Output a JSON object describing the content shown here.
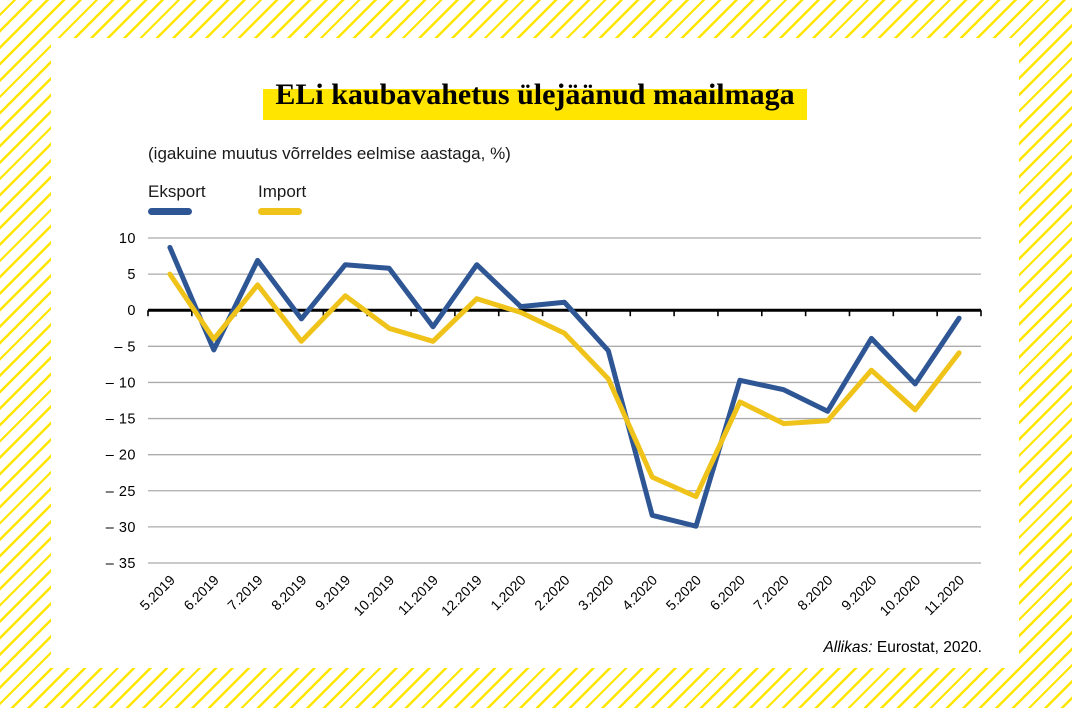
{
  "title": "ELi kaubavahetus ülejäänud maailmaga",
  "subtitle": "(igakuine muutus võrreldes eelmise aastaga, %)",
  "legend": {
    "eksport_label": "Eksport",
    "import_label": "Import"
  },
  "source": {
    "label": "Allikas:",
    "text": " Eurostat, 2020."
  },
  "colors": {
    "eksport_line": "#2E5694",
    "import_line": "#EFC319",
    "title_highlight": "#FFE500",
    "border_stripe": "#FFE500",
    "gridline": "#ABABAB",
    "zero_axis": "#000000",
    "text": "#000000"
  },
  "yaxis_labels": [
    "10",
    "5",
    "0",
    "– 5",
    "– 10",
    "– 15",
    "– 20",
    "– 25",
    "– 30",
    "– 35"
  ],
  "chart_data": {
    "type": "line",
    "title": "ELi kaubavahetus ülejäänud maailmaga",
    "subtitle": "(igakuine muutus võrreldes eelmise aastaga, %)",
    "categories": [
      "5.2019",
      "6.2019",
      "7.2019",
      "8.2019",
      "9.2019",
      "10.2019",
      "11.2019",
      "12.2019",
      "1.2020",
      "2.2020",
      "3.2020",
      "4.2020",
      "5.2020",
      "6.2020",
      "7.2020",
      "8.2020",
      "9.2020",
      "10.2020",
      "11.2020"
    ],
    "series": [
      {
        "name": "Eksport",
        "color": "#2E5694",
        "values": [
          8.7,
          -5.5,
          6.9,
          -1.2,
          6.3,
          5.8,
          -2.3,
          6.3,
          0.5,
          1.1,
          -5.6,
          -28.4,
          -29.9,
          -9.7,
          -11.0,
          -14.0,
          -3.9,
          -10.2,
          -1.1
        ]
      },
      {
        "name": "Import",
        "color": "#EFC319",
        "values": [
          5.0,
          -4.0,
          3.5,
          -4.3,
          2.0,
          -2.5,
          -4.3,
          1.6,
          -0.3,
          -3.2,
          -9.5,
          -23.1,
          -25.8,
          -12.7,
          -15.7,
          -15.3,
          -8.3,
          -13.8,
          -5.9
        ]
      }
    ],
    "ylim": [
      -35,
      10
    ],
    "ytick_step": 5,
    "grid": true,
    "legend_position": "top-left",
    "xlabel": "",
    "ylabel": ""
  }
}
